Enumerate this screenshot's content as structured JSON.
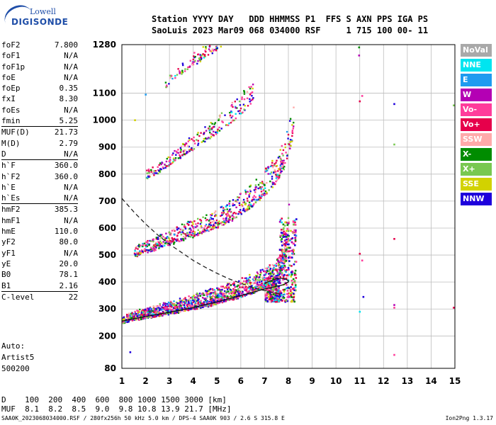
{
  "logo": {
    "line1": "Lowell",
    "line2": "DIGISONDE"
  },
  "header": {
    "line1": "Station YYYY DAY   DDD HHMMSS P1  FFS S AXN PPS IGA PS",
    "line2": "SaoLuis 2023 Mar09 068 034000 RSF     1 715 100 00- 11"
  },
  "params": [
    {
      "name": "foF2",
      "value": "7.800"
    },
    {
      "name": "foF1",
      "value": "N/A"
    },
    {
      "name": "foF1p",
      "value": "N/A"
    },
    {
      "name": "foE",
      "value": "N/A"
    },
    {
      "name": "foEp",
      "value": "0.35"
    },
    {
      "name": "fxI",
      "value": "8.30"
    },
    {
      "name": "foEs",
      "value": "N/A"
    },
    {
      "name": "fmin",
      "value": "5.25"
    },
    {
      "name": "MUF(D)",
      "value": "21.73",
      "sep": true
    },
    {
      "name": "M(D)",
      "value": "2.79"
    },
    {
      "name": "D",
      "value": "N/A"
    },
    {
      "name": "h`F",
      "value": "360.0",
      "sep": true
    },
    {
      "name": "h`F2",
      "value": "360.0"
    },
    {
      "name": "h`E",
      "value": "N/A"
    },
    {
      "name": "h`Es",
      "value": "N/A"
    },
    {
      "name": "hmF2",
      "value": "385.3",
      "sep": true
    },
    {
      "name": "hmF1",
      "value": "N/A"
    },
    {
      "name": "hmE",
      "value": "110.0"
    },
    {
      "name": "yF2",
      "value": "80.0"
    },
    {
      "name": "yF1",
      "value": "N/A"
    },
    {
      "name": "yE",
      "value": "20.0"
    },
    {
      "name": "B0",
      "value": "78.1"
    },
    {
      "name": "B1",
      "value": "2.16"
    },
    {
      "name": "C-level",
      "value": "22",
      "sep": true
    }
  ],
  "auto": {
    "line1": "Auto:",
    "line2": "Artist5",
    "line3": "500200"
  },
  "legend": [
    {
      "label": "NoVal",
      "color": "#a9a9a9"
    },
    {
      "label": "NNE",
      "color": "#00e5f0"
    },
    {
      "label": "E",
      "color": "#1e9bf0"
    },
    {
      "label": "W",
      "color": "#b400b4"
    },
    {
      "label": "Vo-",
      "color": "#ff3c9b"
    },
    {
      "label": "Vo+",
      "color": "#e6004b"
    },
    {
      "label": "SSW",
      "color": "#ffaaaa"
    },
    {
      "label": "X-",
      "color": "#008c00"
    },
    {
      "label": "X+",
      "color": "#78c850"
    },
    {
      "label": "SSE",
      "color": "#d2d200"
    },
    {
      "label": "NNW",
      "color": "#1e00dc"
    }
  ],
  "dmuf": {
    "d_line": "D    100  200  400  600  800 1000 1500 3000 [km]",
    "muf_line": "MUF  8.1  8.2  8.5  9.0  9.8 10.8 13.9 21.7 [MHz]"
  },
  "footer": {
    "text": "SAA0K_2023068034000.RSF / 280fx256h 50 kHz 5.0 km / DPS-4 SAA0K 903 / 2.6 S 315.8 E",
    "version": "Ion2Png 1.3.17"
  },
  "chart_data": {
    "type": "scatter",
    "title": "",
    "xlabel": "",
    "ylabel": "",
    "xlim": [
      1,
      15
    ],
    "ylim": [
      80,
      1280
    ],
    "xticks": [
      "1",
      "2",
      "3",
      "4",
      "5",
      "6",
      "7",
      "8",
      "9",
      "10",
      "11",
      "12",
      "13",
      "14",
      "15"
    ],
    "yticks": [
      "80",
      "200",
      "300",
      "400",
      "500",
      "600",
      "700",
      "800",
      "900",
      "1000",
      "1100",
      "1280"
    ],
    "grid": true,
    "traces": [
      {
        "name": "F2 first hop",
        "x": [
          1.0,
          1.5,
          2.0,
          2.5,
          3.0,
          3.5,
          4.0,
          4.5,
          5.0,
          5.5,
          6.0,
          6.5,
          7.0,
          7.3,
          7.6,
          7.8,
          7.9,
          8.0
        ],
        "y": [
          255,
          265,
          272,
          280,
          288,
          296,
          305,
          315,
          326,
          338,
          350,
          365,
          385,
          400,
          430,
          470,
          520,
          620
        ]
      },
      {
        "name": "F2 second hop",
        "x": [
          1.5,
          2.0,
          2.5,
          3.0,
          3.5,
          4.0,
          4.5,
          5.0,
          5.5,
          6.0,
          6.5,
          7.0,
          7.5,
          7.8,
          8.0,
          8.2
        ],
        "y": [
          500,
          515,
          530,
          545,
          560,
          575,
          590,
          610,
          630,
          655,
          690,
          730,
          780,
          830,
          890,
          950
        ]
      },
      {
        "name": "F2 third hop",
        "x": [
          2.0,
          2.5,
          3.0,
          3.5,
          4.0,
          4.5,
          5.0,
          5.5,
          6.0,
          6.5
        ],
        "y": [
          790,
          810,
          840,
          870,
          900,
          930,
          960,
          990,
          1030,
          1080
        ]
      },
      {
        "name": "F2 fourth hop",
        "x": [
          2.8,
          3.0,
          3.5,
          4.0,
          4.5,
          5.0,
          5.3
        ],
        "y": [
          1120,
          1150,
          1180,
          1210,
          1240,
          1270,
          1290
        ]
      }
    ],
    "profile_curve": {
      "x": [
        1.0,
        1.5,
        2.0,
        2.5,
        3.0,
        3.5,
        4.0,
        4.5,
        5.0,
        5.5,
        6.0,
        6.5,
        7.0,
        7.5,
        7.8
      ],
      "y": [
        710,
        660,
        615,
        575,
        540,
        510,
        480,
        455,
        432,
        412,
        395,
        380,
        368,
        358,
        352
      ]
    },
    "trace_curve": {
      "x": [
        1.0,
        2.0,
        3.0,
        4.0,
        5.0,
        5.5,
        6.0,
        6.5,
        7.0,
        7.3,
        7.6,
        7.8,
        7.9,
        8.0,
        8.0,
        7.9,
        7.7,
        7.5,
        7.3,
        7.0
      ],
      "y": [
        255,
        272,
        288,
        305,
        326,
        338,
        350,
        362,
        374,
        380,
        386,
        390,
        395,
        400,
        405,
        410,
        414,
        412,
        406,
        395
      ]
    },
    "stray_points": [
      {
        "x": 10.97,
        "y": 1270
      },
      {
        "x": 10.97,
        "y": 1240
      },
      {
        "x": 11.0,
        "y": 1070
      },
      {
        "x": 11.1,
        "y": 1090
      },
      {
        "x": 11.0,
        "y": 505
      },
      {
        "x": 11.1,
        "y": 480
      },
      {
        "x": 11.0,
        "y": 290
      },
      {
        "x": 11.15,
        "y": 345
      },
      {
        "x": 12.45,
        "y": 1060
      },
      {
        "x": 12.45,
        "y": 910
      },
      {
        "x": 12.45,
        "y": 560
      },
      {
        "x": 12.45,
        "y": 315
      },
      {
        "x": 12.45,
        "y": 305
      },
      {
        "x": 12.45,
        "y": 130
      },
      {
        "x": 14.95,
        "y": 1055
      },
      {
        "x": 14.95,
        "y": 305
      },
      {
        "x": 1.35,
        "y": 140
      },
      {
        "x": 1.55,
        "y": 1000
      },
      {
        "x": 2.0,
        "y": 1095
      }
    ]
  }
}
